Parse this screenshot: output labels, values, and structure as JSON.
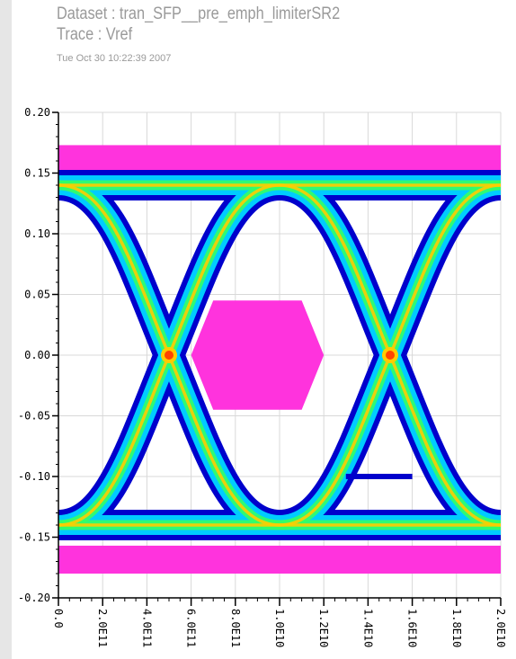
{
  "header": {
    "dataset": "Dataset : tran_SFP__pre_emph_limiterSR2",
    "trace": "Trace : Vref",
    "timestamp": "Tue Oct 30 10:22:39 2007"
  },
  "chart_data": {
    "type": "eye-diagram",
    "title": "Dataset : tran_SFP__pre_emph_limiterSR2",
    "subtitle": "Trace : Vref",
    "xlabel": "",
    "ylabel": "",
    "xlim": [
      0,
      2e-10
    ],
    "ylim": [
      -0.2,
      0.2
    ],
    "y_ticks": [
      "0.20",
      "0.15",
      "0.10",
      "0.05",
      "0.00",
      "-0.05",
      "-0.10",
      "-0.15",
      "-0.20"
    ],
    "y_tick_values": [
      0.2,
      0.15,
      0.1,
      0.05,
      0.0,
      -0.05,
      -0.1,
      -0.15,
      -0.2
    ],
    "x_ticks": [
      "0.0",
      "2.0E11",
      "4.0E11",
      "6.0E11",
      "8.0E11",
      "1.0E10",
      "1.2E10",
      "1.4E10",
      "1.6E10",
      "1.8E10",
      "2.0E10"
    ],
    "x_tick_values": [
      0,
      2e-11,
      4e-11,
      6e-11,
      8e-11,
      1e-10,
      1.2e-10,
      1.4e-10,
      1.6e-10,
      1.8e-10,
      2e-10
    ],
    "mask": {
      "color": "#ff33dd",
      "top_bar": [
        0.15,
        0.173
      ],
      "bottom_bar": [
        -0.18,
        -0.157
      ],
      "center_hexagon": {
        "points": [
          [
            6e-11,
            0.0
          ],
          [
            7e-11,
            0.045
          ],
          [
            1.1e-10,
            0.045
          ],
          [
            1.2e-10,
            0.0
          ],
          [
            1.1e-10,
            -0.045
          ],
          [
            7e-11,
            -0.045
          ]
        ]
      }
    },
    "crossing_times": [
      5e-11,
      1.5e-10
    ],
    "levels": {
      "high": 0.14,
      "low": -0.14
    },
    "colors": {
      "outer": "#0000cc",
      "mid": "#00ccff",
      "inner": "#33ff66",
      "core": "#ffcc00",
      "peak": "#ff4400"
    },
    "grid": true
  }
}
